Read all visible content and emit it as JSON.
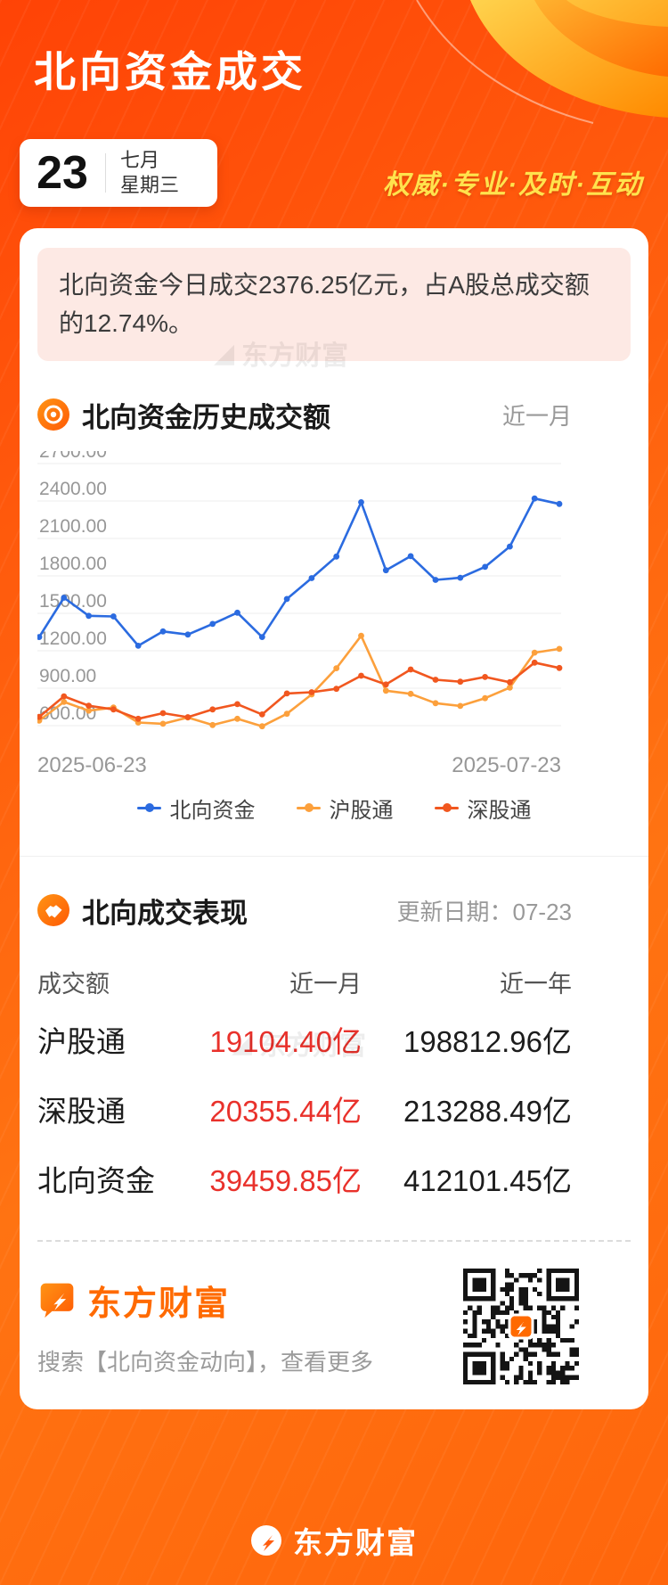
{
  "page": {
    "title": "北向资金成交",
    "date": {
      "day": "23",
      "month": "七月",
      "weekday": "星期三"
    },
    "slogan": "权威·专业·及时·互动"
  },
  "notice": {
    "text": "北向资金今日成交2376.25亿元，占A股总成交额的12.74%。"
  },
  "chart_section": {
    "title": "北向资金历史成交额",
    "range_label": "近一月"
  },
  "chart_data": {
    "type": "line",
    "title": "北向资金历史成交额",
    "range": "近一月",
    "grid": true,
    "legend_position": "bottom",
    "ylim": [
      600,
      2700
    ],
    "y_ticks": [
      2700,
      2400,
      2100,
      1800,
      1500,
      1200,
      900,
      600
    ],
    "x_start_label": "2025-06-23",
    "x_end_label": "2025-07-23",
    "series": [
      {
        "name": "北向资金",
        "color": "#2b6be0",
        "values": [
          1310,
          1625,
          1480,
          1475,
          1240,
          1355,
          1330,
          1415,
          1505,
          1310,
          1615,
          1782,
          1955,
          2390,
          1845,
          1958,
          1768,
          1785,
          1872,
          2035,
          2420,
          2376.25
        ]
      },
      {
        "name": "沪股通",
        "color": "#fca03c",
        "values": [
          640,
          790,
          720,
          745,
          625,
          615,
          665,
          605,
          655,
          595,
          695,
          850,
          1060,
          1320,
          880,
          855,
          780,
          758,
          820,
          905,
          1185,
          1215
        ]
      },
      {
        "name": "深股通",
        "color": "#f1571f",
        "values": [
          670,
          835,
          760,
          730,
          655,
          700,
          668,
          730,
          772,
          690,
          858,
          868,
          895,
          1000,
          930,
          1050,
          968,
          952,
          990,
          948,
          1105,
          1062
        ]
      }
    ]
  },
  "table_section": {
    "title": "北向成交表现",
    "update_label": "更新日期：07-23",
    "columns": [
      "成交额",
      "近一月",
      "近一年"
    ],
    "rows": [
      {
        "name": "沪股通",
        "month": "19104.40亿",
        "year": "198812.96亿"
      },
      {
        "name": "深股通",
        "month": "20355.44亿",
        "year": "213288.49亿"
      },
      {
        "name": "北向资金",
        "month": "39459.85亿",
        "year": "412101.45亿"
      }
    ]
  },
  "footer": {
    "brand_label": "东方财富",
    "search_hint": "搜索【北向资金动向】，查看更多"
  },
  "bottom": {
    "brand_label": "东方财富"
  },
  "watermark": {
    "text": "东方财富"
  },
  "colors": {
    "background_accent": "#ff5c0d",
    "brand_orange": "#ff6a00",
    "value_red": "#e9312b",
    "slogan_yellow": "#ffe34d",
    "line_north": "#2b6be0",
    "line_sh": "#fca03c",
    "line_sz": "#f1571f"
  }
}
